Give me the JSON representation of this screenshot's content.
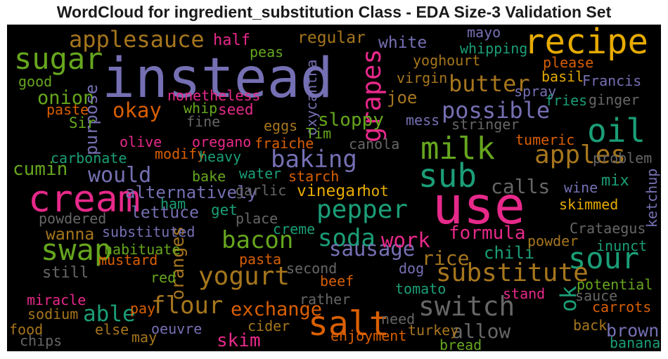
{
  "chart_data": {
    "type": "wordcloud",
    "title": "WordCloud for ingredient_substitution Class - EDA Size-3 Validation Set",
    "background": "#000000",
    "palette": [
      "#7570b3",
      "#1b9e77",
      "#d95f02",
      "#e7298a",
      "#66a61e",
      "#e6ab02",
      "#a6761d",
      "#666666"
    ],
    "words": [
      {
        "text": "instead",
        "weight": 1.0,
        "color": "#7570b3",
        "orientation": "horizontal"
      },
      {
        "text": "use",
        "weight": 0.93,
        "color": "#e7298a",
        "orientation": "horizontal"
      },
      {
        "text": "cream",
        "weight": 0.66,
        "color": "#e7298a",
        "orientation": "horizontal"
      },
      {
        "text": "recipe",
        "weight": 0.6,
        "color": "#e6ab02",
        "orientation": "horizontal"
      },
      {
        "text": "salt",
        "weight": 0.58,
        "color": "#d95f02",
        "orientation": "horizontal"
      },
      {
        "text": "oil",
        "weight": 0.55,
        "color": "#1b9e77",
        "orientation": "horizontal"
      },
      {
        "text": "sub",
        "weight": 0.55,
        "color": "#1b9e77",
        "orientation": "horizontal"
      },
      {
        "text": "milk",
        "weight": 0.53,
        "color": "#66a61e",
        "orientation": "horizontal"
      },
      {
        "text": "sugar",
        "weight": 0.5,
        "color": "#66a61e",
        "orientation": "horizontal"
      },
      {
        "text": "swap",
        "weight": 0.49,
        "color": "#66a61e",
        "orientation": "horizontal"
      },
      {
        "text": "sour",
        "weight": 0.49,
        "color": "#1b9e77",
        "orientation": "horizontal"
      },
      {
        "text": "switch",
        "weight": 0.44,
        "color": "#666666",
        "orientation": "horizontal"
      },
      {
        "text": "grapes",
        "weight": 0.42,
        "color": "#e7298a",
        "orientation": "vertical"
      },
      {
        "text": "pepper",
        "weight": 0.41,
        "color": "#1b9e77",
        "orientation": "horizontal"
      },
      {
        "text": "substitute",
        "weight": 0.4,
        "color": "#a6761d",
        "orientation": "horizontal"
      },
      {
        "text": "yogurt",
        "weight": 0.4,
        "color": "#a6761d",
        "orientation": "horizontal"
      },
      {
        "text": "apples",
        "weight": 0.4,
        "color": "#a6761d",
        "orientation": "horizontal"
      },
      {
        "text": "baking",
        "weight": 0.38,
        "color": "#7570b3",
        "orientation": "horizontal"
      },
      {
        "text": "bacon",
        "weight": 0.37,
        "color": "#66a61e",
        "orientation": "horizontal"
      },
      {
        "text": "flour",
        "weight": 0.37,
        "color": "#a6761d",
        "orientation": "horizontal"
      },
      {
        "text": "soda",
        "weight": 0.37,
        "color": "#1b9e77",
        "orientation": "horizontal"
      },
      {
        "text": "applesauce",
        "weight": 0.34,
        "color": "#a6761d",
        "orientation": "horizontal"
      },
      {
        "text": "possible",
        "weight": 0.34,
        "color": "#7570b3",
        "orientation": "horizontal"
      },
      {
        "text": "butter",
        "weight": 0.34,
        "color": "#a6761d",
        "orientation": "horizontal"
      },
      {
        "text": "able",
        "weight": 0.33,
        "color": "#1b9e77",
        "orientation": "horizontal"
      },
      {
        "text": "ok",
        "weight": 0.33,
        "color": "#1b9e77",
        "orientation": "vertical"
      },
      {
        "text": "would",
        "weight": 0.31,
        "color": "#7570b3",
        "orientation": "horizontal"
      },
      {
        "text": "sausage",
        "weight": 0.3,
        "color": "#7570b3",
        "orientation": "horizontal"
      },
      {
        "text": "okay",
        "weight": 0.3,
        "color": "#d95f02",
        "orientation": "horizontal"
      },
      {
        "text": "work",
        "weight": 0.3,
        "color": "#e7298a",
        "orientation": "horizontal"
      },
      {
        "text": "rice",
        "weight": 0.28,
        "color": "#a6761d",
        "orientation": "horizontal"
      },
      {
        "text": "calls",
        "weight": 0.28,
        "color": "#666666",
        "orientation": "horizontal"
      },
      {
        "text": "allow",
        "weight": 0.28,
        "color": "#666666",
        "orientation": "horizontal"
      },
      {
        "text": "exchange",
        "weight": 0.27,
        "color": "#d95f02",
        "orientation": "horizontal"
      },
      {
        "text": "onion",
        "weight": 0.26,
        "color": "#66a61e",
        "orientation": "horizontal"
      },
      {
        "text": "cumin",
        "weight": 0.25,
        "color": "#66a61e",
        "orientation": "horizontal"
      },
      {
        "text": "skim",
        "weight": 0.25,
        "color": "#e7298a",
        "orientation": "horizontal"
      },
      {
        "text": "sloppy",
        "weight": 0.24,
        "color": "#66a61e",
        "orientation": "horizontal"
      },
      {
        "text": "formula",
        "weight": 0.24,
        "color": "#e7298a",
        "orientation": "horizontal"
      },
      {
        "text": "oranges",
        "weight": 0.23,
        "color": "#a6761d",
        "orientation": "vertical"
      },
      {
        "text": "brown",
        "weight": 0.23,
        "color": "#7570b3",
        "orientation": "horizontal"
      },
      {
        "text": "purpose",
        "weight": 0.22,
        "color": "#7570b3",
        "orientation": "vertical"
      },
      {
        "text": "alternatively",
        "weight": 0.22,
        "color": "#7570b3",
        "orientation": "horizontal"
      },
      {
        "text": "chili",
        "weight": 0.21,
        "color": "#1b9e77",
        "orientation": "horizontal"
      },
      {
        "text": "joe",
        "weight": 0.21,
        "color": "#a6761d",
        "orientation": "horizontal"
      },
      {
        "text": "vinegar",
        "weight": 0.2,
        "color": "#e6ab02",
        "orientation": "horizontal"
      },
      {
        "text": "lettuce",
        "weight": 0.2,
        "color": "#7570b3",
        "orientation": "horizontal"
      },
      {
        "text": "regular",
        "weight": 0.2,
        "color": "#a6761d",
        "orientation": "horizontal"
      },
      {
        "text": "white",
        "weight": 0.2,
        "color": "#7570b3",
        "orientation": "horizontal"
      },
      {
        "text": "wanna",
        "weight": 0.19,
        "color": "#a6761d",
        "orientation": "horizontal"
      },
      {
        "text": "still",
        "weight": 0.18,
        "color": "#666666",
        "orientation": "horizontal"
      },
      {
        "text": "mix",
        "weight": 0.18,
        "color": "#1b9e77",
        "orientation": "horizontal"
      },
      {
        "text": "half",
        "weight": 0.18,
        "color": "#e7298a",
        "orientation": "horizontal"
      },
      {
        "text": "Sir",
        "weight": 0.17,
        "color": "#66a61e",
        "orientation": "horizontal"
      },
      {
        "text": "seed",
        "weight": 0.17,
        "color": "#e7298a",
        "orientation": "horizontal"
      },
      {
        "text": "get",
        "weight": 0.17,
        "color": "#1b9e77",
        "orientation": "horizontal"
      },
      {
        "text": "hot",
        "weight": 0.16,
        "color": "#e6ab02",
        "orientation": "horizontal"
      },
      {
        "text": "mayo",
        "weight": 0.15,
        "color": "#7570b3",
        "orientation": "horizontal"
      },
      {
        "text": "yoghourt",
        "weight": 0.15,
        "color": "#a6761d",
        "orientation": "horizontal"
      },
      {
        "text": "whipping",
        "weight": 0.15,
        "color": "#1b9e77",
        "orientation": "horizontal"
      },
      {
        "text": "peas",
        "weight": 0.15,
        "color": "#66a61e",
        "orientation": "horizontal"
      },
      {
        "text": "please",
        "weight": 0.15,
        "color": "#d95f02",
        "orientation": "horizontal"
      },
      {
        "text": "good",
        "weight": 0.15,
        "color": "#66a61e",
        "orientation": "horizontal"
      },
      {
        "text": "virgin",
        "weight": 0.15,
        "color": "#a6761d",
        "orientation": "horizontal"
      },
      {
        "text": "basil",
        "weight": 0.15,
        "color": "#e6ab02",
        "orientation": "horizontal"
      },
      {
        "text": "Francis",
        "weight": 0.15,
        "color": "#7570b3",
        "orientation": "horizontal"
      },
      {
        "text": "oxycantha",
        "weight": 0.15,
        "color": "#7570b3",
        "orientation": "vertical"
      },
      {
        "text": "nonetheless",
        "weight": 0.15,
        "color": "#e7298a",
        "orientation": "horizontal"
      },
      {
        "text": "spray",
        "weight": 0.15,
        "color": "#7570b3",
        "orientation": "horizontal"
      },
      {
        "text": "fries",
        "weight": 0.15,
        "color": "#1b9e77",
        "orientation": "horizontal"
      },
      {
        "text": "ginger",
        "weight": 0.15,
        "color": "#666666",
        "orientation": "horizontal"
      },
      {
        "text": "paste",
        "weight": 0.15,
        "color": "#d95f02",
        "orientation": "horizontal"
      },
      {
        "text": "whip",
        "weight": 0.15,
        "color": "#66a61e",
        "orientation": "horizontal"
      },
      {
        "text": "mess",
        "weight": 0.15,
        "color": "#7570b3",
        "orientation": "horizontal"
      },
      {
        "text": "fine",
        "weight": 0.15,
        "color": "#666666",
        "orientation": "horizontal"
      },
      {
        "text": "stringer",
        "weight": 0.15,
        "color": "#666666",
        "orientation": "horizontal"
      },
      {
        "text": "eggs",
        "weight": 0.15,
        "color": "#a6761d",
        "orientation": "horizontal"
      },
      {
        "text": "Tim",
        "weight": 0.15,
        "color": "#66a61e",
        "orientation": "horizontal"
      },
      {
        "text": "olive",
        "weight": 0.15,
        "color": "#e7298a",
        "orientation": "horizontal"
      },
      {
        "text": "oregano",
        "weight": 0.15,
        "color": "#e7298a",
        "orientation": "horizontal"
      },
      {
        "text": "fraiche",
        "weight": 0.15,
        "color": "#d95f02",
        "orientation": "horizontal"
      },
      {
        "text": "tumeric",
        "weight": 0.15,
        "color": "#d95f02",
        "orientation": "horizontal"
      },
      {
        "text": "carbonate",
        "weight": 0.15,
        "color": "#1b9e77",
        "orientation": "horizontal"
      },
      {
        "text": "modify",
        "weight": 0.15,
        "color": "#d95f02",
        "orientation": "horizontal"
      },
      {
        "text": "heavy",
        "weight": 0.15,
        "color": "#1b9e77",
        "orientation": "horizontal"
      },
      {
        "text": "canola",
        "weight": 0.15,
        "color": "#666666",
        "orientation": "horizontal"
      },
      {
        "text": "problem",
        "weight": 0.15,
        "color": "#666666",
        "orientation": "horizontal"
      },
      {
        "text": "bake",
        "weight": 0.15,
        "color": "#66a61e",
        "orientation": "horizontal"
      },
      {
        "text": "water",
        "weight": 0.15,
        "color": "#1b9e77",
        "orientation": "horizontal"
      },
      {
        "text": "starch",
        "weight": 0.15,
        "color": "#d95f02",
        "orientation": "horizontal"
      },
      {
        "text": "ketchup",
        "weight": 0.15,
        "color": "#7570b3",
        "orientation": "vertical"
      },
      {
        "text": "wine",
        "weight": 0.15,
        "color": "#7570b3",
        "orientation": "horizontal"
      },
      {
        "text": "garlic",
        "weight": 0.15,
        "color": "#666666",
        "orientation": "horizontal"
      },
      {
        "text": "ham",
        "weight": 0.15,
        "color": "#1b9e77",
        "orientation": "horizontal"
      },
      {
        "text": "skimmed",
        "weight": 0.15,
        "color": "#e6ab02",
        "orientation": "horizontal"
      },
      {
        "text": "powdered",
        "weight": 0.15,
        "color": "#666666",
        "orientation": "horizontal"
      },
      {
        "text": "place",
        "weight": 0.15,
        "color": "#666666",
        "orientation": "horizontal"
      },
      {
        "text": "creme",
        "weight": 0.15,
        "color": "#1b9e77",
        "orientation": "horizontal"
      },
      {
        "text": "Crataegus",
        "weight": 0.15,
        "color": "#666666",
        "orientation": "horizontal"
      },
      {
        "text": "substituted",
        "weight": 0.15,
        "color": "#7570b3",
        "orientation": "horizontal"
      },
      {
        "text": "powder",
        "weight": 0.15,
        "color": "#a6761d",
        "orientation": "horizontal"
      },
      {
        "text": "habituate",
        "weight": 0.15,
        "color": "#66a61e",
        "orientation": "horizontal"
      },
      {
        "text": "inunct",
        "weight": 0.15,
        "color": "#1b9e77",
        "orientation": "horizontal"
      },
      {
        "text": "mustard",
        "weight": 0.15,
        "color": "#d95f02",
        "orientation": "horizontal"
      },
      {
        "text": "pasta",
        "weight": 0.15,
        "color": "#d95f02",
        "orientation": "horizontal"
      },
      {
        "text": "red",
        "weight": 0.15,
        "color": "#66a61e",
        "orientation": "horizontal"
      },
      {
        "text": "second",
        "weight": 0.15,
        "color": "#666666",
        "orientation": "horizontal"
      },
      {
        "text": "dog",
        "weight": 0.15,
        "color": "#7570b3",
        "orientation": "horizontal"
      },
      {
        "text": "beef",
        "weight": 0.15,
        "color": "#d95f02",
        "orientation": "horizontal"
      },
      {
        "text": "potential",
        "weight": 0.15,
        "color": "#66a61e",
        "orientation": "horizontal"
      },
      {
        "text": "miracle",
        "weight": 0.15,
        "color": "#e7298a",
        "orientation": "horizontal"
      },
      {
        "text": "tomato",
        "weight": 0.15,
        "color": "#1b9e77",
        "orientation": "horizontal"
      },
      {
        "text": "rather",
        "weight": 0.15,
        "color": "#666666",
        "orientation": "horizontal"
      },
      {
        "text": "stand",
        "weight": 0.15,
        "color": "#e7298a",
        "orientation": "horizontal"
      },
      {
        "text": "sauce",
        "weight": 0.15,
        "color": "#666666",
        "orientation": "horizontal"
      },
      {
        "text": "pay",
        "weight": 0.15,
        "color": "#d95f02",
        "orientation": "horizontal"
      },
      {
        "text": "carrots",
        "weight": 0.15,
        "color": "#d95f02",
        "orientation": "horizontal"
      },
      {
        "text": "sodium",
        "weight": 0.15,
        "color": "#a6761d",
        "orientation": "horizontal"
      },
      {
        "text": "need",
        "weight": 0.15,
        "color": "#666666",
        "orientation": "horizontal"
      },
      {
        "text": "else",
        "weight": 0.15,
        "color": "#a6761d",
        "orientation": "horizontal"
      },
      {
        "text": "oeuvre",
        "weight": 0.15,
        "color": "#7570b3",
        "orientation": "horizontal"
      },
      {
        "text": "cider",
        "weight": 0.15,
        "color": "#a6761d",
        "orientation": "horizontal"
      },
      {
        "text": "turkey",
        "weight": 0.15,
        "color": "#a6761d",
        "orientation": "horizontal"
      },
      {
        "text": "back",
        "weight": 0.15,
        "color": "#a6761d",
        "orientation": "horizontal"
      },
      {
        "text": "food",
        "weight": 0.15,
        "color": "#a6761d",
        "orientation": "horizontal"
      },
      {
        "text": "may",
        "weight": 0.15,
        "color": "#a6761d",
        "orientation": "horizontal"
      },
      {
        "text": "chips",
        "weight": 0.15,
        "color": "#666666",
        "orientation": "horizontal"
      },
      {
        "text": "enjoyment",
        "weight": 0.15,
        "color": "#d95f02",
        "orientation": "horizontal"
      },
      {
        "text": "bread",
        "weight": 0.15,
        "color": "#66a61e",
        "orientation": "horizontal"
      },
      {
        "text": "bananas",
        "weight": 0.15,
        "color": "#1b9e77",
        "orientation": "horizontal"
      }
    ]
  }
}
